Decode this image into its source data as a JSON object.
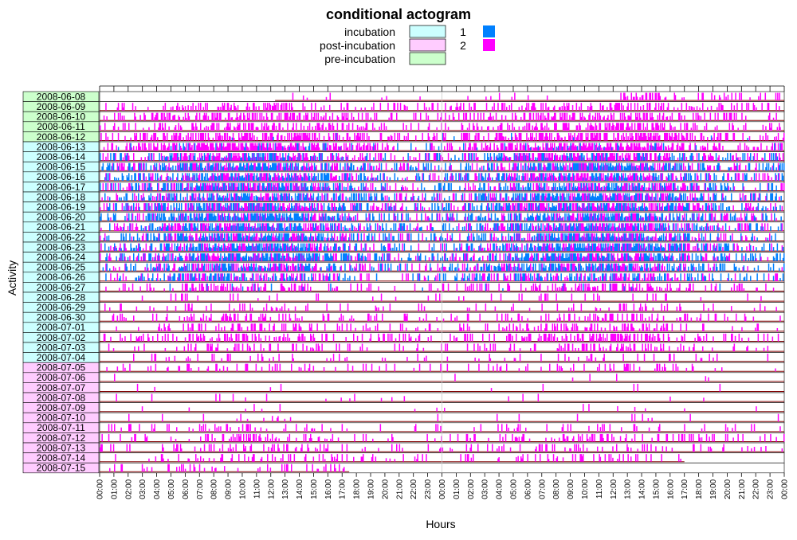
{
  "chart_data": {
    "type": "actogram",
    "title": "conditional actogram",
    "xlabel": "Hours",
    "ylabel": "Activity",
    "hours_range": [
      0,
      48
    ],
    "legend_conditions": [
      {
        "label": "incubation",
        "color": "#ccffff"
      },
      {
        "label": "post-incubation",
        "color": "#ffccff"
      },
      {
        "label": "pre-incubation",
        "color": "#ccffcc"
      }
    ],
    "legend_activity": [
      {
        "label": "1",
        "color": "#0080ff"
      },
      {
        "label": "2",
        "color": "#ff00ff"
      }
    ],
    "x_tick_labels": [
      "00:00",
      "01:00",
      "02:00",
      "03:00",
      "04:00",
      "05:00",
      "06:00",
      "07:00",
      "08:00",
      "09:00",
      "10:00",
      "11:00",
      "12:00",
      "13:00",
      "14:00",
      "15:00",
      "16:00",
      "17:00",
      "18:00",
      "19:00",
      "20:00",
      "21:00",
      "22:00",
      "23:00",
      "00:00",
      "01:00",
      "02:00",
      "03:00",
      "04:00",
      "05:00",
      "06:00",
      "07:00",
      "08:00",
      "09:00",
      "10:00",
      "11:00",
      "12:00",
      "13:00",
      "14:00",
      "15:00",
      "16:00",
      "17:00",
      "18:00",
      "19:00",
      "20:00",
      "21:00",
      "22:00",
      "23:00",
      "00:00"
    ],
    "days": [
      {
        "date": "2008-06-08",
        "condition": "pre-incubation"
      },
      {
        "date": "2008-06-09",
        "condition": "pre-incubation"
      },
      {
        "date": "2008-06-10",
        "condition": "pre-incubation"
      },
      {
        "date": "2008-06-11",
        "condition": "pre-incubation"
      },
      {
        "date": "2008-06-12",
        "condition": "pre-incubation"
      },
      {
        "date": "2008-06-13",
        "condition": "incubation"
      },
      {
        "date": "2008-06-14",
        "condition": "incubation"
      },
      {
        "date": "2008-06-15",
        "condition": "incubation"
      },
      {
        "date": "2008-06-16",
        "condition": "incubation"
      },
      {
        "date": "2008-06-17",
        "condition": "incubation"
      },
      {
        "date": "2008-06-18",
        "condition": "incubation"
      },
      {
        "date": "2008-06-19",
        "condition": "incubation"
      },
      {
        "date": "2008-06-20",
        "condition": "incubation"
      },
      {
        "date": "2008-06-21",
        "condition": "incubation"
      },
      {
        "date": "2008-06-22",
        "condition": "incubation"
      },
      {
        "date": "2008-06-23",
        "condition": "incubation"
      },
      {
        "date": "2008-06-24",
        "condition": "incubation"
      },
      {
        "date": "2008-06-25",
        "condition": "incubation"
      },
      {
        "date": "2008-06-26",
        "condition": "incubation"
      },
      {
        "date": "2008-06-27",
        "condition": "incubation"
      },
      {
        "date": "2008-06-28",
        "condition": "incubation"
      },
      {
        "date": "2008-06-29",
        "condition": "incubation"
      },
      {
        "date": "2008-06-30",
        "condition": "incubation"
      },
      {
        "date": "2008-07-01",
        "condition": "incubation"
      },
      {
        "date": "2008-07-02",
        "condition": "incubation"
      },
      {
        "date": "2008-07-03",
        "condition": "incubation"
      },
      {
        "date": "2008-07-04",
        "condition": "incubation"
      },
      {
        "date": "2008-07-05",
        "condition": "post-incubation"
      },
      {
        "date": "2008-07-06",
        "condition": "post-incubation"
      },
      {
        "date": "2008-07-07",
        "condition": "post-incubation"
      },
      {
        "date": "2008-07-08",
        "condition": "post-incubation"
      },
      {
        "date": "2008-07-09",
        "condition": "post-incubation"
      },
      {
        "date": "2008-07-10",
        "condition": "post-incubation"
      },
      {
        "date": "2008-07-11",
        "condition": "post-incubation"
      },
      {
        "date": "2008-07-12",
        "condition": "post-incubation"
      },
      {
        "date": "2008-07-13",
        "condition": "post-incubation"
      },
      {
        "date": "2008-07-14",
        "condition": "post-incubation"
      },
      {
        "date": "2008-07-15",
        "condition": "post-incubation"
      }
    ],
    "activity_profile": [
      {
        "date": "2008-06-08",
        "start_h": 12.3,
        "end_h": 48,
        "dens2": 0.05,
        "dens1": 0.0,
        "dense_from_h": 36.5,
        "dense2": 0.45
      },
      {
        "date": "2008-06-09",
        "start_h": 0,
        "end_h": 48,
        "dens2": 0.4,
        "dens1": 0.0
      },
      {
        "date": "2008-06-10",
        "start_h": 0,
        "end_h": 48,
        "dens2": 0.45,
        "dens1": 0.0
      },
      {
        "date": "2008-06-11",
        "start_h": 0,
        "end_h": 48,
        "dens2": 0.5,
        "dens1": 0.0
      },
      {
        "date": "2008-06-12",
        "start_h": 0,
        "end_h": 48,
        "dens2": 0.6,
        "dens1": 0.02
      },
      {
        "date": "2008-06-13",
        "start_h": 0,
        "end_h": 48,
        "dens2": 0.7,
        "dens1": 0.15
      },
      {
        "date": "2008-06-14",
        "start_h": 0,
        "end_h": 48,
        "dens2": 0.5,
        "dens1": 0.35
      },
      {
        "date": "2008-06-15",
        "start_h": 0,
        "end_h": 48,
        "dens2": 0.4,
        "dens1": 0.5
      },
      {
        "date": "2008-06-16",
        "start_h": 0,
        "end_h": 48,
        "dens2": 0.45,
        "dens1": 0.45
      },
      {
        "date": "2008-06-17",
        "start_h": 0,
        "end_h": 48,
        "dens2": 0.4,
        "dens1": 0.45
      },
      {
        "date": "2008-06-18",
        "start_h": 0,
        "end_h": 48,
        "dens2": 0.35,
        "dens1": 0.5
      },
      {
        "date": "2008-06-19",
        "start_h": 0,
        "end_h": 48,
        "dens2": 0.4,
        "dens1": 0.5
      },
      {
        "date": "2008-06-20",
        "start_h": 0,
        "end_h": 48,
        "dens2": 0.35,
        "dens1": 0.55
      },
      {
        "date": "2008-06-21",
        "start_h": 0,
        "end_h": 48,
        "dens2": 0.4,
        "dens1": 0.5
      },
      {
        "date": "2008-06-22",
        "start_h": 0,
        "end_h": 48,
        "dens2": 0.4,
        "dens1": 0.5
      },
      {
        "date": "2008-06-23",
        "start_h": 0,
        "end_h": 48,
        "dens2": 0.35,
        "dens1": 0.55
      },
      {
        "date": "2008-06-24",
        "start_h": 0,
        "end_h": 48,
        "dens2": 0.4,
        "dens1": 0.5
      },
      {
        "date": "2008-06-25",
        "start_h": 0,
        "end_h": 48,
        "dens2": 0.35,
        "dens1": 0.5
      },
      {
        "date": "2008-06-26",
        "start_h": 0,
        "end_h": 48,
        "dens2": 0.3,
        "dens1": 0.35
      },
      {
        "date": "2008-06-27",
        "start_h": 0,
        "end_h": 48,
        "dens2": 0.35,
        "dens1": 0.05
      },
      {
        "date": "2008-06-28",
        "start_h": 0,
        "end_h": 48,
        "dens2": 0.1,
        "dens1": 0.0
      },
      {
        "date": "2008-06-29",
        "start_h": 0,
        "end_h": 48,
        "dens2": 0.2,
        "dens1": 0.0
      },
      {
        "date": "2008-06-30",
        "start_h": 0,
        "end_h": 48,
        "dens2": 0.3,
        "dens1": 0.0
      },
      {
        "date": "2008-07-01",
        "start_h": 0,
        "end_h": 48,
        "dens2": 0.35,
        "dens1": 0.0
      },
      {
        "date": "2008-07-02",
        "start_h": 0,
        "end_h": 48,
        "dens2": 0.4,
        "dens1": 0.0
      },
      {
        "date": "2008-07-03",
        "start_h": 0,
        "end_h": 48,
        "dens2": 0.3,
        "dens1": 0.0
      },
      {
        "date": "2008-07-04",
        "start_h": 0,
        "end_h": 48,
        "dens2": 0.15,
        "dens1": 0.0
      },
      {
        "date": "2008-07-05",
        "start_h": 0,
        "end_h": 48,
        "dens2": 0.2,
        "dens1": 0.0
      },
      {
        "date": "2008-07-06",
        "start_h": 0,
        "end_h": 48,
        "dens2": 0.02,
        "dens1": 0.0
      },
      {
        "date": "2008-07-07",
        "start_h": 0,
        "end_h": 48,
        "dens2": 0.02,
        "dens1": 0.0
      },
      {
        "date": "2008-07-08",
        "start_h": 0,
        "end_h": 48,
        "dens2": 0.02,
        "dens1": 0.0
      },
      {
        "date": "2008-07-09",
        "start_h": 0,
        "end_h": 48,
        "dens2": 0.03,
        "dens1": 0.0
      },
      {
        "date": "2008-07-10",
        "start_h": 0,
        "end_h": 48,
        "dens2": 0.05,
        "dens1": 0.0
      },
      {
        "date": "2008-07-11",
        "start_h": 0,
        "end_h": 48,
        "dens2": 0.15,
        "dens1": 0.0
      },
      {
        "date": "2008-07-12",
        "start_h": 0,
        "end_h": 48,
        "dens2": 0.3,
        "dens1": 0.0
      },
      {
        "date": "2008-07-13",
        "start_h": 0,
        "end_h": 48,
        "dens2": 0.25,
        "dens1": 0.0
      },
      {
        "date": "2008-07-14",
        "start_h": 0,
        "end_h": 41,
        "dens2": 0.25,
        "dens1": 0.0
      },
      {
        "date": "2008-07-15",
        "start_h": 0,
        "end_h": 17.5,
        "dens2": 0.2,
        "dens1": 0.0
      }
    ]
  }
}
